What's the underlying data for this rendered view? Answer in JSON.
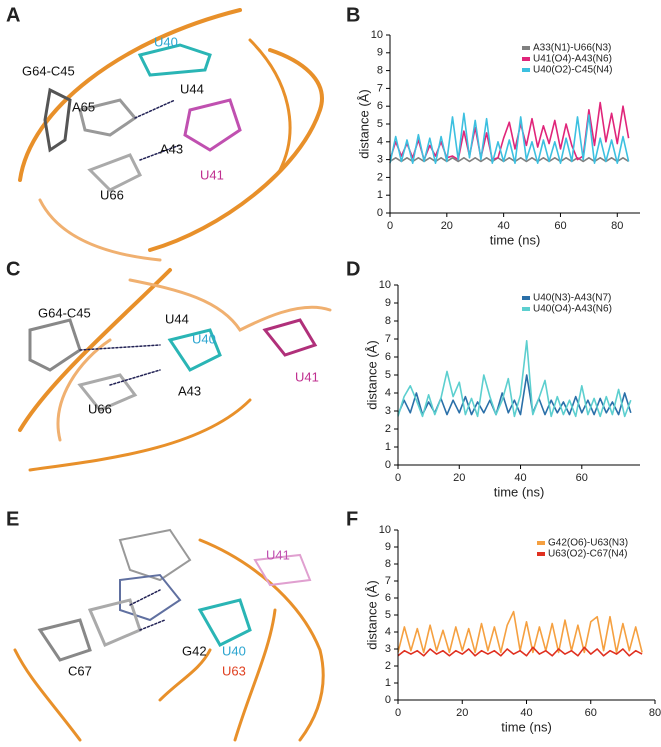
{
  "panel_labels": [
    "A",
    "B",
    "C",
    "D",
    "E",
    "F"
  ],
  "structures": [
    {
      "labels": [
        "U40",
        "G64-C45",
        "U44",
        "A65",
        "A43",
        "U41",
        "U66"
      ]
    },
    {
      "labels": [
        "G64-C45",
        "U44",
        "U40",
        "U41",
        "A43",
        "U66"
      ]
    },
    {
      "labels": [
        "U41",
        "G42",
        "U40",
        "C67",
        "U63"
      ]
    }
  ],
  "chart_data": [
    {
      "type": "line",
      "xlabel": "time (ns)",
      "ylabel": "distance (Å)",
      "legend": "upper right",
      "xlim": [
        0,
        88
      ],
      "ylim": [
        0,
        10
      ],
      "xticks": [
        0,
        20,
        40,
        60,
        80
      ],
      "yticks": [
        0,
        1,
        2,
        3,
        4,
        5,
        6,
        7,
        8,
        9,
        10
      ],
      "x": [
        0,
        2,
        4,
        6,
        8,
        10,
        12,
        14,
        16,
        18,
        20,
        22,
        24,
        26,
        28,
        30,
        32,
        34,
        36,
        38,
        40,
        42,
        44,
        46,
        48,
        50,
        52,
        54,
        56,
        58,
        60,
        62,
        64,
        66,
        68,
        70,
        72,
        74,
        76,
        78,
        80,
        82,
        84
      ],
      "series": [
        {
          "name": "A33(N1)-U66(N3)",
          "color": "#808080",
          "values": [
            2.9,
            3.1,
            2.9,
            3.1,
            2.9,
            3.1,
            2.9,
            3.1,
            2.9,
            3.1,
            2.9,
            3.1,
            2.9,
            3.1,
            2.9,
            3.1,
            2.9,
            3.1,
            2.9,
            3.1,
            2.9,
            3.1,
            2.9,
            3.1,
            2.9,
            3.1,
            2.9,
            3.1,
            2.9,
            3.1,
            2.9,
            3.1,
            2.9,
            3.1,
            2.9,
            3.1,
            2.9,
            3.1,
            2.9,
            3.1,
            2.9,
            3.1,
            2.9
          ]
        },
        {
          "name": "U41(O4)-A43(N6)",
          "color": "#e0257a",
          "values": [
            3.0,
            4.0,
            3.2,
            3.9,
            3.1,
            4.1,
            3.0,
            3.8,
            3.2,
            4.0,
            3.1,
            3.2,
            3.0,
            4.6,
            3.2,
            4.8,
            3.1,
            4.5,
            3.0,
            3.1,
            4.2,
            5.1,
            3.6,
            5.0,
            3.8,
            5.3,
            3.7,
            4.9,
            3.9,
            5.2,
            3.6,
            5.0,
            3.8,
            3.0,
            3.2,
            5.8,
            3.8,
            6.2,
            4.0,
            5.6,
            3.9,
            6.0,
            4.2
          ]
        },
        {
          "name": "U40(O2)-C45(N4)",
          "color": "#3cc0e0",
          "values": [
            2.8,
            4.3,
            2.9,
            4.1,
            2.8,
            4.4,
            2.9,
            4.2,
            2.8,
            4.3,
            2.9,
            5.4,
            3.0,
            5.6,
            3.1,
            5.2,
            3.0,
            5.3,
            2.8,
            4.0,
            2.9,
            4.1,
            2.8,
            5.4,
            3.0,
            4.0,
            2.8,
            4.1,
            2.9,
            4.0,
            2.8,
            4.2,
            2.9,
            5.4,
            3.0,
            5.5,
            2.8,
            4.2,
            2.9,
            4.1,
            2.8,
            4.3,
            2.9
          ]
        }
      ]
    },
    {
      "type": "line",
      "xlabel": "time (ns)",
      "ylabel": "distance (Å)",
      "legend": "upper right",
      "xlim": [
        0,
        79
      ],
      "ylim": [
        0,
        10
      ],
      "xticks": [
        0,
        20,
        40,
        60
      ],
      "yticks": [
        0,
        1,
        2,
        3,
        4,
        5,
        6,
        7,
        8,
        9,
        10
      ],
      "x": [
        0,
        2,
        4,
        6,
        8,
        10,
        12,
        14,
        16,
        18,
        20,
        22,
        24,
        26,
        28,
        30,
        32,
        34,
        36,
        38,
        40,
        42,
        44,
        46,
        48,
        50,
        52,
        54,
        56,
        58,
        60,
        62,
        64,
        66,
        68,
        70,
        72,
        74,
        76
      ],
      "series": [
        {
          "name": "U40(N3)-A43(N7)",
          "color": "#2a6fa8",
          "values": [
            2.8,
            3.6,
            2.9,
            4.0,
            2.8,
            3.5,
            2.9,
            3.7,
            2.8,
            3.6,
            2.9,
            3.8,
            2.8,
            3.5,
            2.9,
            3.6,
            2.8,
            4.0,
            2.9,
            3.6,
            2.8,
            5.0,
            2.9,
            3.7,
            2.8,
            3.6,
            2.9,
            3.5,
            2.8,
            3.8,
            2.9,
            3.6,
            2.8,
            3.7,
            2.9,
            3.5,
            2.8,
            4.0,
            2.9
          ]
        },
        {
          "name": "U40(O4)-A43(N6)",
          "color": "#5ccfcf",
          "values": [
            2.7,
            3.8,
            4.4,
            3.6,
            2.7,
            3.9,
            2.8,
            3.7,
            5.2,
            3.8,
            4.6,
            2.8,
            3.7,
            2.7,
            5.0,
            3.8,
            2.8,
            3.6,
            4.8,
            2.7,
            3.9,
            6.9,
            2.8,
            3.7,
            4.7,
            2.7,
            3.8,
            2.8,
            3.6,
            2.7,
            4.4,
            2.8,
            3.7,
            2.7,
            3.8,
            2.8,
            4.2,
            2.7,
            3.6
          ]
        }
      ]
    },
    {
      "type": "line",
      "xlabel": "time (ns)",
      "ylabel": "distance (Å)",
      "legend": "upper right",
      "xlim": [
        0,
        80
      ],
      "ylim": [
        0,
        10
      ],
      "xticks": [
        0,
        20,
        40,
        60,
        80
      ],
      "yticks": [
        0,
        1,
        2,
        3,
        4,
        5,
        6,
        7,
        8,
        9,
        10
      ],
      "x": [
        0,
        2,
        4,
        6,
        8,
        10,
        12,
        14,
        16,
        18,
        20,
        22,
        24,
        26,
        28,
        30,
        32,
        34,
        36,
        38,
        40,
        42,
        44,
        46,
        48,
        50,
        52,
        54,
        56,
        58,
        60,
        62,
        64,
        66,
        68,
        70,
        72,
        74,
        76
      ],
      "series": [
        {
          "name": "G42(O6)-U63(N3)",
          "color": "#f5a040",
          "values": [
            2.8,
            4.3,
            2.9,
            4.2,
            2.8,
            4.4,
            2.9,
            4.1,
            2.8,
            4.3,
            2.9,
            4.2,
            2.8,
            4.5,
            2.9,
            4.3,
            2.8,
            4.4,
            5.2,
            2.9,
            4.6,
            2.8,
            4.3,
            2.9,
            4.5,
            2.8,
            4.7,
            2.9,
            4.4,
            2.8,
            4.6,
            4.9,
            2.9,
            4.9,
            2.8,
            4.5,
            2.9,
            4.3,
            2.8
          ]
        },
        {
          "name": "U63(O2)-C67(N4)",
          "color": "#e03020",
          "values": [
            2.6,
            2.9,
            2.7,
            2.9,
            2.6,
            3.0,
            2.7,
            2.9,
            2.6,
            2.9,
            2.7,
            3.0,
            2.6,
            2.9,
            2.7,
            2.9,
            2.6,
            3.0,
            2.7,
            2.9,
            2.6,
            3.1,
            2.7,
            2.9,
            2.6,
            3.0,
            2.7,
            2.9,
            2.6,
            3.1,
            2.7,
            3.0,
            2.6,
            2.9,
            2.7,
            3.0,
            2.6,
            2.9,
            2.7
          ]
        }
      ]
    }
  ]
}
